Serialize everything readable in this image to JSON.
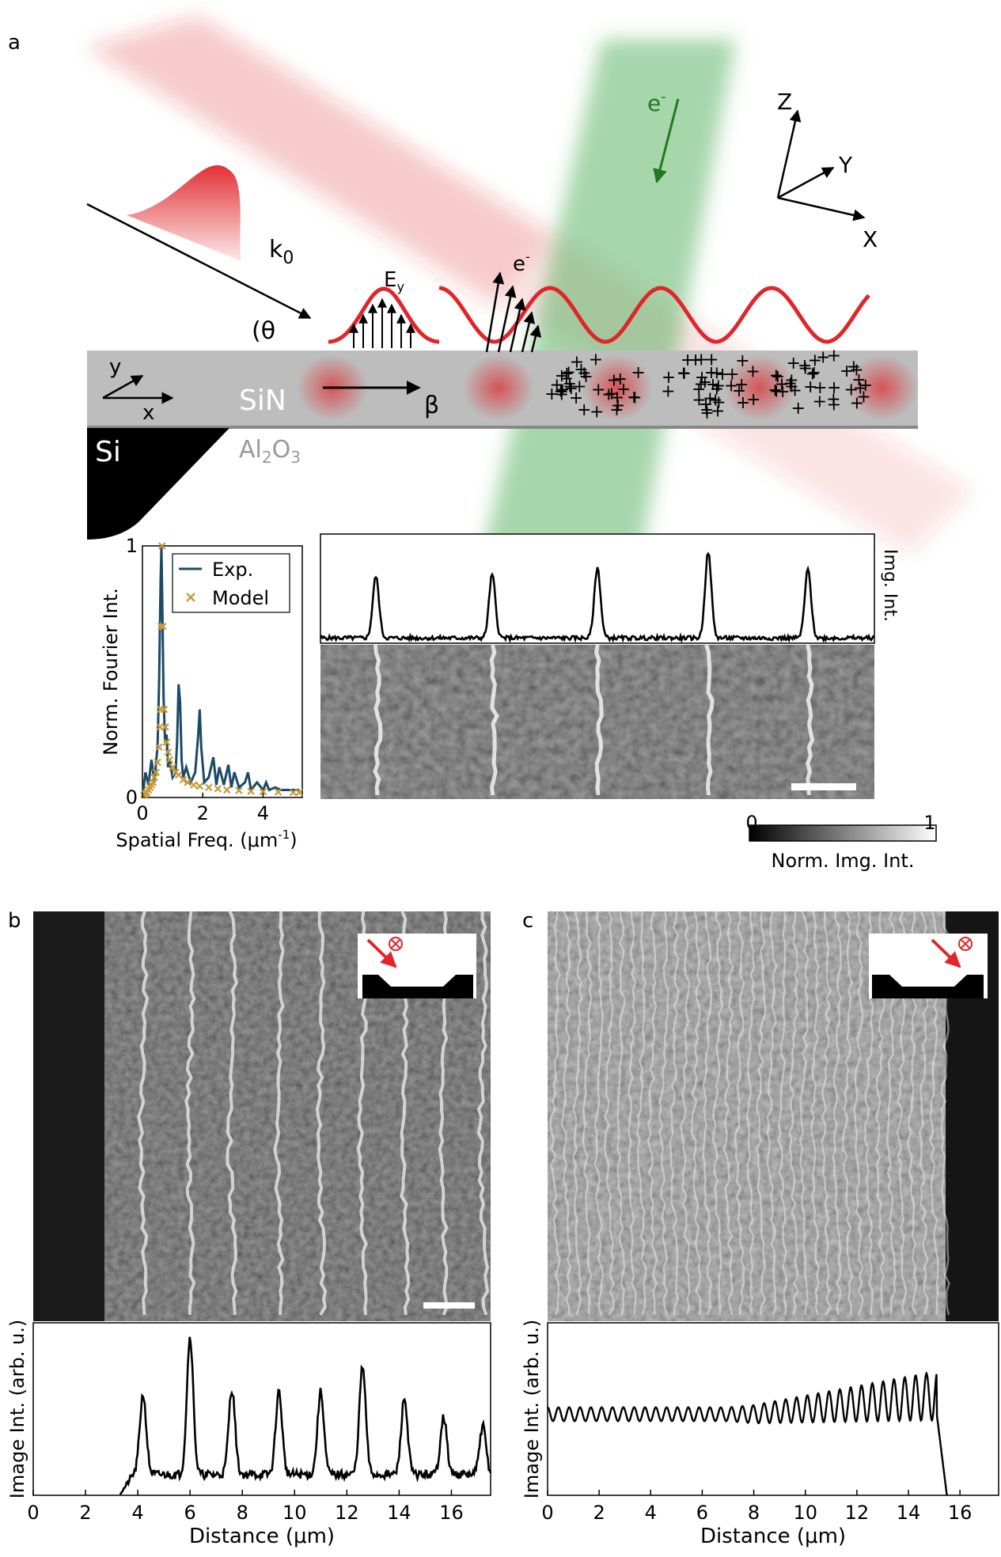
{
  "panel_a": {
    "label": "a",
    "schematic": {
      "k0": "k",
      "k0_sub": "0",
      "theta": "θ",
      "ey": "E",
      "ey_sub": "y",
      "electron": "e",
      "electron_sup": "-",
      "beta": "β",
      "sin": "SiN",
      "si": "Si",
      "al2o3_parts": [
        "Al",
        "2",
        "O",
        "3"
      ],
      "axes_upper": {
        "z": "Z",
        "y": "Y",
        "x": "X"
      },
      "axes_lower": {
        "y": "y",
        "x": "x"
      },
      "charges": "+"
    },
    "colorbar": {
      "min": "0",
      "max": "1",
      "label": "Norm. Img. Int."
    },
    "profile_label": "Img. Int."
  },
  "panel_b": {
    "label": "b"
  },
  "panel_c": {
    "label": "c"
  },
  "chart_data": [
    {
      "id": "a-fourier",
      "type": "line",
      "xlabel": "Spatial Freq. (μm",
      "xlabel_sup": "-1",
      "xlabel_end": ")",
      "ylabel": "Norm. Fourier Int.",
      "xlim": [
        0,
        5.3
      ],
      "ylim": [
        0,
        1
      ],
      "xticks": [
        "0",
        "2",
        "4"
      ],
      "xtick_values": [
        0,
        2,
        4
      ],
      "yticks": [
        "0",
        "1"
      ],
      "ytick_values": [
        0,
        1
      ],
      "legend": [
        "Exp.",
        "Model"
      ],
      "legend_position": "top-right",
      "series": [
        {
          "name": "Exp.",
          "color": "#1b4a66",
          "x": [
            0.02,
            0.1,
            0.2,
            0.3,
            0.4,
            0.45,
            0.5,
            0.55,
            0.6,
            0.63,
            0.66,
            0.7,
            0.75,
            0.8,
            0.85,
            0.9,
            1.0,
            1.1,
            1.15,
            1.2,
            1.25,
            1.3,
            1.35,
            1.45,
            1.6,
            1.75,
            1.85,
            1.9,
            1.95,
            2.05,
            2.2,
            2.35,
            2.45,
            2.55,
            2.7,
            2.85,
            2.95,
            3.05,
            3.2,
            3.4,
            3.5,
            3.6,
            3.8,
            4.0,
            4.1,
            4.2,
            4.4,
            4.6,
            4.8,
            5.0,
            5.2
          ],
          "y": [
            0.02,
            0.1,
            0.05,
            0.15,
            0.06,
            0.14,
            0.2,
            0.45,
            0.85,
            1.0,
            0.75,
            0.4,
            0.22,
            0.25,
            0.12,
            0.15,
            0.08,
            0.1,
            0.22,
            0.45,
            0.38,
            0.15,
            0.08,
            0.12,
            0.06,
            0.1,
            0.25,
            0.35,
            0.2,
            0.06,
            0.08,
            0.16,
            0.05,
            0.12,
            0.05,
            0.13,
            0.04,
            0.1,
            0.04,
            0.06,
            0.1,
            0.03,
            0.06,
            0.03,
            0.06,
            0.03,
            0.04,
            0.03,
            0.03,
            0.03,
            0.03
          ]
        },
        {
          "name": "Model",
          "color": "#c69a3b",
          "x": [
            0.05,
            0.1,
            0.15,
            0.2,
            0.25,
            0.3,
            0.35,
            0.4,
            0.45,
            0.5,
            0.55,
            0.58,
            0.6,
            0.62,
            0.65,
            0.68,
            0.72,
            0.76,
            0.8,
            0.85,
            0.9,
            1.0,
            1.1,
            1.2,
            1.35,
            1.5,
            1.7,
            1.9,
            2.2,
            2.5,
            2.8,
            3.2,
            3.6,
            4.0,
            4.5,
            5.0,
            5.2
          ],
          "y": [
            0.01,
            0.015,
            0.02,
            0.03,
            0.04,
            0.05,
            0.06,
            0.08,
            0.1,
            0.14,
            0.2,
            0.28,
            0.35,
            0.68,
            1.0,
            0.68,
            0.35,
            0.28,
            0.22,
            0.18,
            0.15,
            0.12,
            0.1,
            0.09,
            0.07,
            0.06,
            0.05,
            0.045,
            0.04,
            0.035,
            0.03,
            0.028,
            0.025,
            0.023,
            0.022,
            0.02,
            0.02
          ]
        }
      ]
    },
    {
      "id": "a-profile",
      "type": "line",
      "ylabel": "Img. Int.",
      "peaks_x": [
        0.1,
        0.31,
        0.5,
        0.7,
        0.88
      ],
      "peaks_height": [
        0.72,
        0.74,
        0.82,
        1.0,
        0.8
      ]
    },
    {
      "id": "b-profile",
      "type": "line",
      "xlabel": "Distance (μm)",
      "ylabel": "Image Int. (arb. u.)",
      "xlim": [
        0,
        17.5
      ],
      "xticks": [
        "0",
        "2",
        "4",
        "6",
        "8",
        "10",
        "12",
        "14",
        "16"
      ],
      "xtick_values": [
        0,
        2,
        4,
        6,
        8,
        10,
        12,
        14,
        16
      ],
      "peaks_x": [
        4.2,
        6.0,
        7.6,
        9.4,
        11.0,
        12.6,
        14.2,
        15.7,
        17.2
      ],
      "peaks_height": [
        0.58,
        1.0,
        0.62,
        0.6,
        0.6,
        0.78,
        0.55,
        0.42,
        0.35
      ],
      "start_x": 3.3
    },
    {
      "id": "c-profile",
      "type": "line",
      "xlabel": "Distance (μm)",
      "ylabel": "Image Int. (arb. u.)",
      "xlim": [
        0,
        17.5
      ],
      "xticks": [
        "0",
        "2",
        "4",
        "6",
        "8",
        "10",
        "12",
        "14",
        "16"
      ],
      "xtick_values": [
        0,
        2,
        4,
        6,
        8,
        10,
        12,
        14,
        16
      ],
      "period": 0.42,
      "end_x": 15.5
    }
  ],
  "colors": {
    "laser_red": "#e0262a",
    "electron_green": "#3aa545",
    "membrane_gray": "#bdbdbd"
  }
}
